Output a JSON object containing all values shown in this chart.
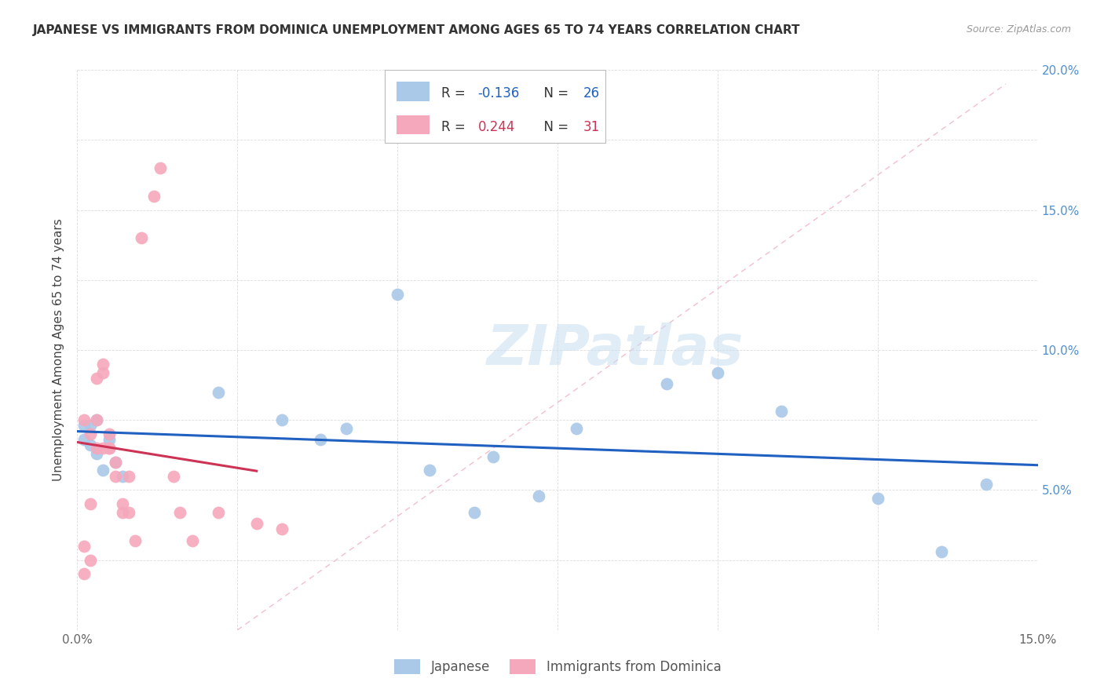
{
  "title": "JAPANESE VS IMMIGRANTS FROM DOMINICA UNEMPLOYMENT AMONG AGES 65 TO 74 YEARS CORRELATION CHART",
  "source": "Source: ZipAtlas.com",
  "ylabel": "Unemployment Among Ages 65 to 74 years",
  "xlim": [
    0,
    0.15
  ],
  "ylim": [
    0,
    0.2
  ],
  "xticks": [
    0.0,
    0.025,
    0.05,
    0.075,
    0.1,
    0.125,
    0.15
  ],
  "xtick_labels": [
    "0.0%",
    "",
    "",
    "",
    "",
    "",
    "15.0%"
  ],
  "yticks": [
    0.0,
    0.025,
    0.05,
    0.075,
    0.1,
    0.125,
    0.15,
    0.175,
    0.2
  ],
  "right_ytick_labels": [
    "",
    "",
    "5.0%",
    "",
    "10.0%",
    "",
    "15.0%",
    "",
    "20.0%"
  ],
  "series1_label": "Japanese",
  "series2_label": "Immigrants from Dominica",
  "series1_color": "#aac8e8",
  "series2_color": "#f5a8bc",
  "trendline1_color": "#2060c0",
  "trendline2_color": "#cc3355",
  "diag_line_color": "#f0b8c8",
  "watermark_text": "ZIPatlas",
  "legend_r1_label": "R = ",
  "legend_r1_val": "-0.136",
  "legend_n1_label": "N = ",
  "legend_n1_val": "26",
  "legend_r2_label": "R = ",
  "legend_r2_val": "0.244",
  "legend_n2_label": "N = ",
  "legend_n2_val": "31",
  "legend_val_color1": "#2060c0",
  "legend_val_color2": "#cc3355",
  "japanese_x": [
    0.001,
    0.001,
    0.002,
    0.002,
    0.003,
    0.003,
    0.004,
    0.005,
    0.006,
    0.007,
    0.022,
    0.032,
    0.038,
    0.042,
    0.05,
    0.055,
    0.062,
    0.065,
    0.072,
    0.078,
    0.092,
    0.1,
    0.11,
    0.125,
    0.135,
    0.142
  ],
  "japanese_y": [
    0.073,
    0.068,
    0.066,
    0.073,
    0.063,
    0.075,
    0.057,
    0.068,
    0.06,
    0.055,
    0.085,
    0.075,
    0.068,
    0.072,
    0.12,
    0.057,
    0.042,
    0.062,
    0.048,
    0.072,
    0.088,
    0.092,
    0.078,
    0.047,
    0.028,
    0.052
  ],
  "dominica_x": [
    0.001,
    0.001,
    0.001,
    0.002,
    0.002,
    0.002,
    0.003,
    0.003,
    0.003,
    0.004,
    0.004,
    0.004,
    0.005,
    0.005,
    0.005,
    0.006,
    0.006,
    0.007,
    0.007,
    0.008,
    0.008,
    0.009,
    0.01,
    0.012,
    0.013,
    0.015,
    0.016,
    0.018,
    0.022,
    0.028,
    0.032
  ],
  "dominica_y": [
    0.02,
    0.03,
    0.075,
    0.025,
    0.045,
    0.07,
    0.065,
    0.075,
    0.09,
    0.092,
    0.095,
    0.065,
    0.07,
    0.065,
    0.065,
    0.055,
    0.06,
    0.042,
    0.045,
    0.042,
    0.055,
    0.032,
    0.14,
    0.155,
    0.165,
    0.055,
    0.042,
    0.032,
    0.042,
    0.038,
    0.036
  ]
}
